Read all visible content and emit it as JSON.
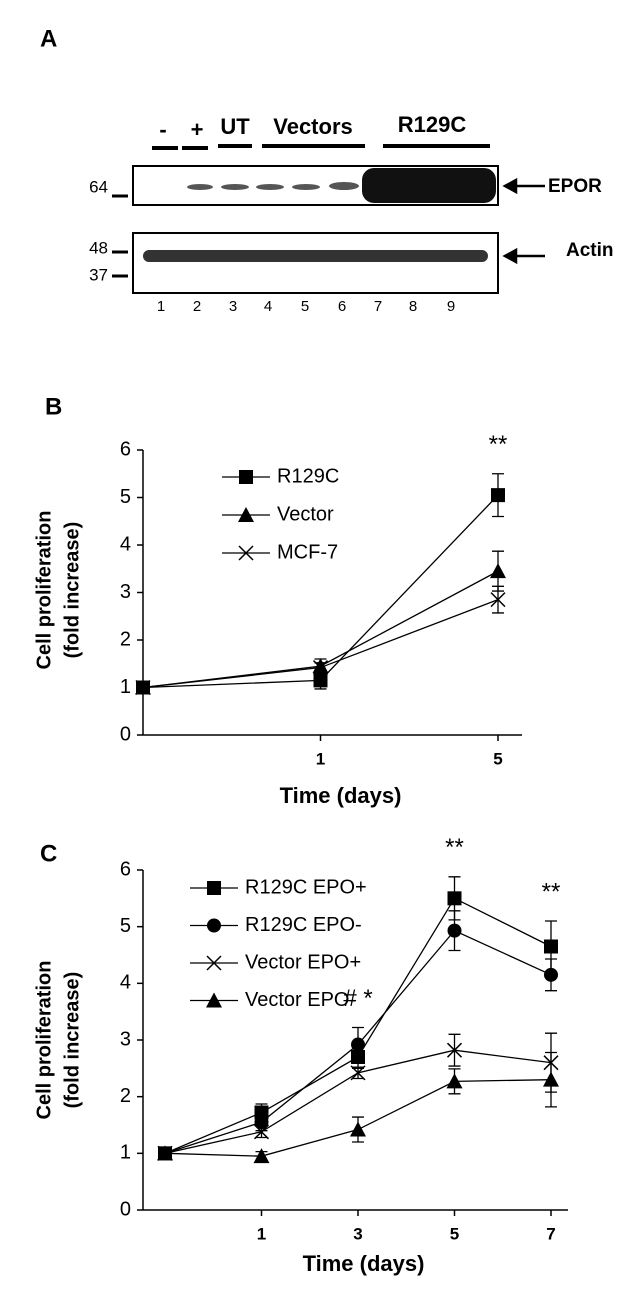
{
  "panel_a": {
    "label": "A",
    "groups": [
      "-",
      "+",
      "UT",
      "Vectors",
      "R129C"
    ],
    "markers": [
      "64",
      "48",
      "37"
    ],
    "proteins": [
      "EPOR",
      "Actin"
    ],
    "lanes": [
      "1",
      "2",
      "3",
      "4",
      "5",
      "6",
      "7",
      "8",
      "9"
    ]
  },
  "chart_data": [
    {
      "panel": "B",
      "type": "line",
      "y_label": [
        "Cell proliferation",
        "(fold increase)"
      ],
      "x_label": "Time (days)",
      "categories": [
        null,
        "1",
        "5"
      ],
      "ylim": [
        0,
        6
      ],
      "yticks": [
        0,
        1,
        2,
        3,
        4,
        5,
        6
      ],
      "series": [
        {
          "name": "R129C",
          "color": "#000000",
          "marker": "square",
          "values": [
            1,
            1.15,
            5.05
          ],
          "errors": [
            0,
            0.18,
            0.45
          ]
        },
        {
          "name": "Vector",
          "color": "#000000",
          "marker": "triangle",
          "values": [
            1,
            1.45,
            3.45
          ],
          "errors": [
            0,
            0.15,
            0.42
          ]
        },
        {
          "name": "MCF-7",
          "color": "#000000",
          "marker": "x",
          "values": [
            1,
            1.42,
            2.85
          ],
          "errors": [
            0,
            0.1,
            0.28
          ]
        }
      ],
      "annotations": [
        {
          "text": "**",
          "category": "5"
        }
      ]
    },
    {
      "panel": "C",
      "type": "line",
      "y_label": [
        "Cell proliferation",
        "(fold increase)"
      ],
      "x_label": "Time (days)",
      "categories": [
        null,
        "1",
        "3",
        "5",
        "7"
      ],
      "ylim": [
        0,
        6
      ],
      "yticks": [
        0,
        1,
        2,
        3,
        4,
        5,
        6
      ],
      "series": [
        {
          "name": "R129C EPO+",
          "color": "#000000",
          "marker": "square",
          "values": [
            1,
            1.72,
            2.7,
            5.5,
            4.65
          ],
          "errors": [
            0,
            0.15,
            0.2,
            0.38,
            0.45
          ]
        },
        {
          "name": "R129C EPO-",
          "color": "#000000",
          "marker": "circle",
          "values": [
            1,
            1.55,
            2.92,
            4.93,
            4.15
          ],
          "errors": [
            0,
            0.15,
            0.3,
            0.35,
            0.28
          ]
        },
        {
          "name": "Vector EPO+",
          "color": "#000000",
          "marker": "x",
          "values": [
            1,
            1.38,
            2.42,
            2.82,
            2.6
          ],
          "errors": [
            0,
            0.1,
            0.1,
            0.28,
            0.52
          ]
        },
        {
          "name": "Vector EPO-",
          "color": "#000000",
          "marker": "triangle",
          "values": [
            1,
            0.95,
            1.42,
            2.27,
            2.3
          ],
          "errors": [
            0,
            0.08,
            0.22,
            0.22,
            0.48
          ]
        }
      ],
      "annotations": [
        {
          "text": "# *",
          "category": "3"
        },
        {
          "text": "**",
          "category": "5"
        },
        {
          "text": "**",
          "category": "7"
        }
      ]
    }
  ]
}
